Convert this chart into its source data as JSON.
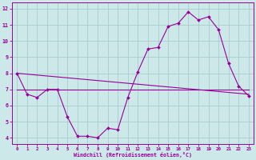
{
  "xlabel": "Windchill (Refroidissement éolien,°C)",
  "background_color": "#cce8e8",
  "grid_color": "#aacccc",
  "line_color": "#990099",
  "x_hours": [
    0,
    1,
    2,
    3,
    4,
    5,
    6,
    7,
    8,
    9,
    10,
    11,
    12,
    13,
    14,
    15,
    16,
    17,
    18,
    19,
    20,
    21,
    22,
    23
  ],
  "line1_y": [
    8.0,
    6.7,
    6.5,
    7.0,
    7.0,
    5.3,
    4.1,
    4.1,
    4.0,
    4.6,
    4.5,
    6.5,
    8.1,
    9.5,
    9.6,
    10.9,
    11.1,
    11.8,
    11.3,
    11.5,
    10.7,
    8.6,
    7.2,
    6.6
  ],
  "line_flat_y": 7.0,
  "diag_y_start": 8.0,
  "diag_y_end": 6.7,
  "ylim": [
    3.6,
    12.4
  ],
  "xlim": [
    -0.5,
    23.5
  ],
  "yticks": [
    4,
    5,
    6,
    7,
    8,
    9,
    10,
    11,
    12
  ],
  "xticks": [
    0,
    1,
    2,
    3,
    4,
    5,
    6,
    7,
    8,
    9,
    10,
    11,
    12,
    13,
    14,
    15,
    16,
    17,
    18,
    19,
    20,
    21,
    22,
    23
  ]
}
